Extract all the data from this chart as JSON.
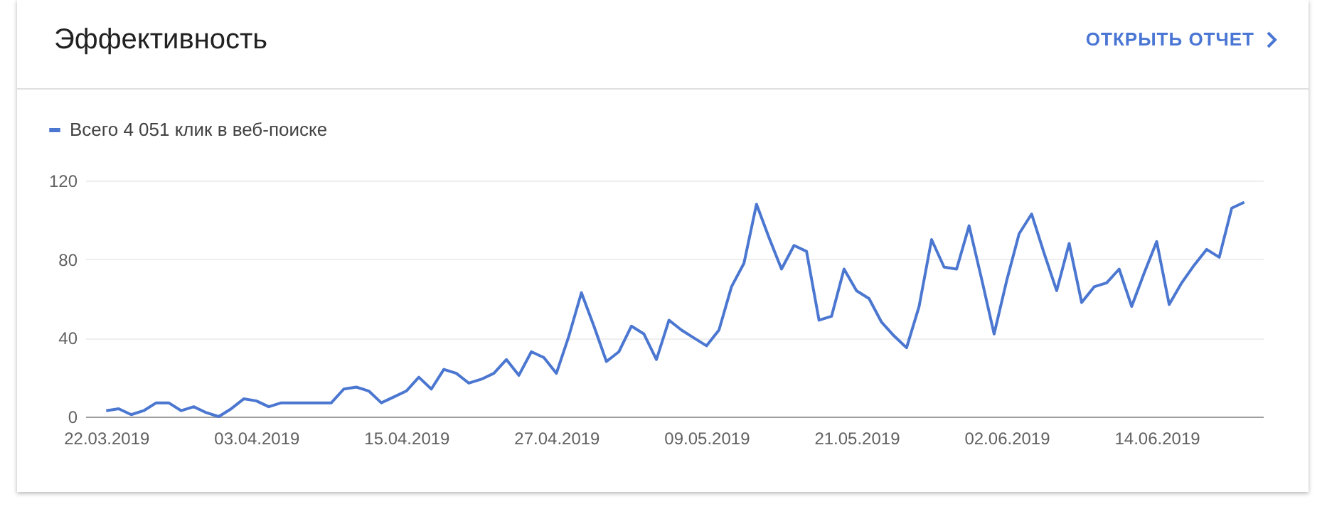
{
  "chart_data": {
    "type": "line",
    "title": "Эффективность",
    "annotations": [
      "ОТКРЫТЬ ОТЧЕТ"
    ],
    "x": [
      "2019-03-22",
      "2019-03-23",
      "2019-03-24",
      "2019-03-25",
      "2019-03-26",
      "2019-03-27",
      "2019-03-28",
      "2019-03-29",
      "2019-03-30",
      "2019-03-31",
      "2019-04-01",
      "2019-04-02",
      "2019-04-03",
      "2019-04-04",
      "2019-04-05",
      "2019-04-06",
      "2019-04-07",
      "2019-04-08",
      "2019-04-09",
      "2019-04-10",
      "2019-04-11",
      "2019-04-12",
      "2019-04-13",
      "2019-04-14",
      "2019-04-15",
      "2019-04-16",
      "2019-04-17",
      "2019-04-18",
      "2019-04-19",
      "2019-04-20",
      "2019-04-21",
      "2019-04-22",
      "2019-04-23",
      "2019-04-24",
      "2019-04-25",
      "2019-04-26",
      "2019-04-27",
      "2019-04-28",
      "2019-04-29",
      "2019-04-30",
      "2019-05-01",
      "2019-05-02",
      "2019-05-03",
      "2019-05-04",
      "2019-05-05",
      "2019-05-06",
      "2019-05-07",
      "2019-05-08",
      "2019-05-09",
      "2019-05-10",
      "2019-05-11",
      "2019-05-12",
      "2019-05-13",
      "2019-05-14",
      "2019-05-15",
      "2019-05-16",
      "2019-05-17",
      "2019-05-18",
      "2019-05-19",
      "2019-05-20",
      "2019-05-21",
      "2019-05-22",
      "2019-05-23",
      "2019-05-24",
      "2019-05-25",
      "2019-05-26",
      "2019-05-27",
      "2019-05-28",
      "2019-05-29",
      "2019-05-30",
      "2019-05-31",
      "2019-06-01",
      "2019-06-02",
      "2019-06-03",
      "2019-06-04",
      "2019-06-05",
      "2019-06-06",
      "2019-06-07",
      "2019-06-08",
      "2019-06-09",
      "2019-06-10",
      "2019-06-11",
      "2019-06-12",
      "2019-06-13",
      "2019-06-14",
      "2019-06-15",
      "2019-06-16",
      "2019-06-17",
      "2019-06-18",
      "2019-06-19",
      "2019-06-20",
      "2019-06-21"
    ],
    "series": [
      {
        "name": "Всего 4 051 клик в веб-поиске",
        "color": "#4b77d1",
        "values": [
          3,
          4,
          1,
          3,
          7,
          7,
          3,
          5,
          2,
          0,
          4,
          9,
          8,
          5,
          7,
          7,
          7,
          7,
          7,
          14,
          15,
          13,
          7,
          10,
          13,
          20,
          14,
          24,
          22,
          17,
          19,
          22,
          29,
          21,
          33,
          30,
          22,
          41,
          63,
          46,
          28,
          33,
          46,
          42,
          29,
          49,
          44,
          40,
          36,
          44,
          66,
          78,
          108,
          91,
          75,
          87,
          84,
          49,
          51,
          75,
          64,
          60,
          48,
          41,
          35,
          56,
          90,
          76,
          75,
          97,
          70,
          42,
          69,
          93,
          103,
          83,
          64,
          88,
          58,
          66,
          68,
          75,
          56,
          73,
          89,
          57,
          68,
          77,
          85,
          81,
          106,
          109
        ]
      }
    ],
    "xlim": [
      "2019-03-20T08:00",
      "2019-06-22T12:00"
    ],
    "xticks": [
      {
        "value": "2019-03-22",
        "label": "22.03.2019"
      },
      {
        "value": "2019-04-03",
        "label": "03.04.2019"
      },
      {
        "value": "2019-04-15",
        "label": "15.04.2019"
      },
      {
        "value": "2019-04-27",
        "label": "27.04.2019"
      },
      {
        "value": "2019-05-09",
        "label": "09.05.2019"
      },
      {
        "value": "2019-05-21",
        "label": "21.05.2019"
      },
      {
        "value": "2019-06-02",
        "label": "02.06.2019"
      },
      {
        "value": "2019-06-14",
        "label": "14.06.2019"
      }
    ],
    "ylim": [
      0,
      120
    ],
    "yticks": [
      0,
      40,
      80,
      120
    ],
    "grid": "y",
    "legend": "top left",
    "marker": "none",
    "line_style": "solid"
  }
}
